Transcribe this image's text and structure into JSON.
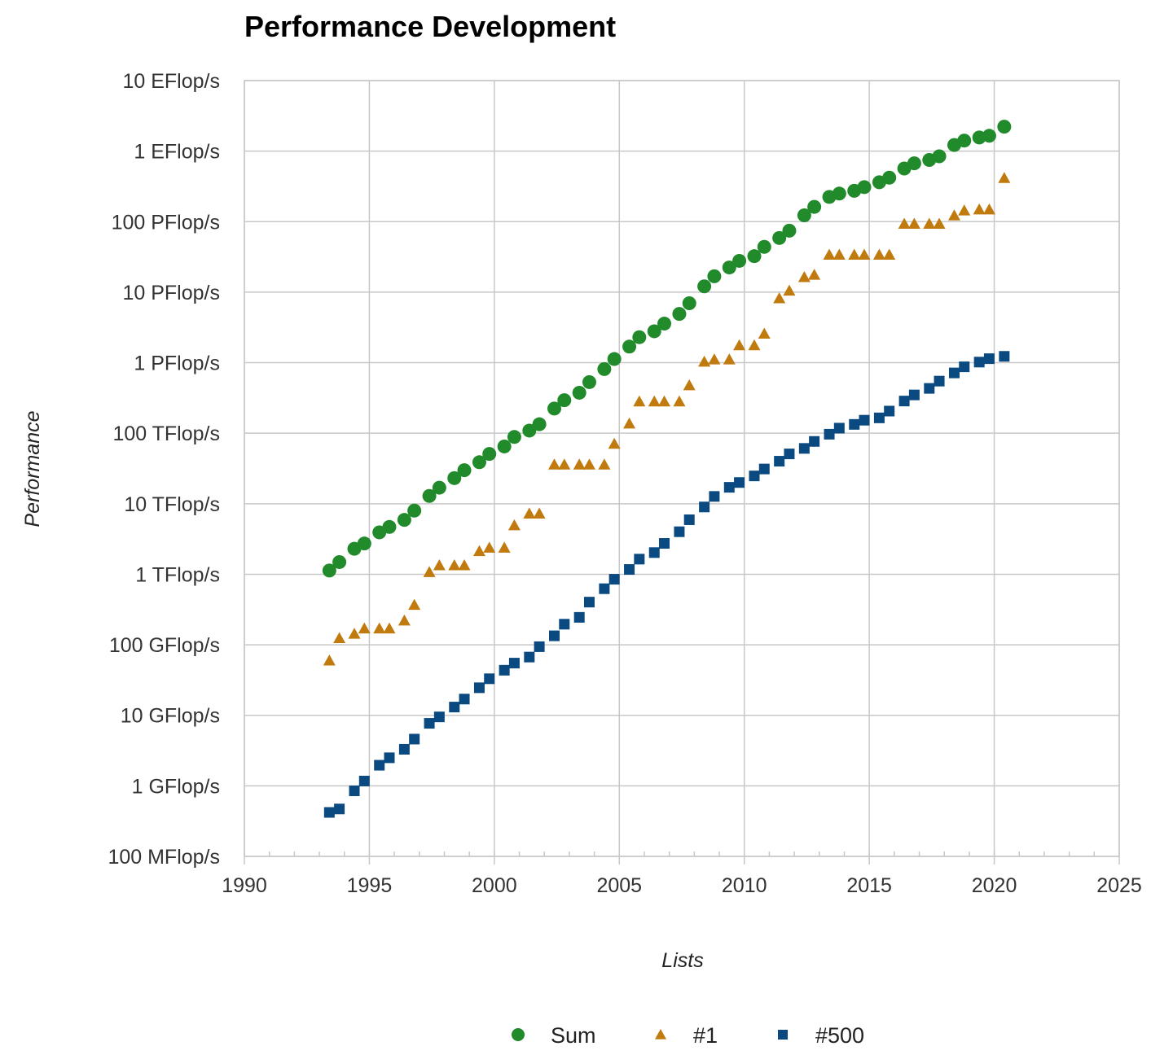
{
  "chart_data": {
    "type": "scatter",
    "title": "Performance Development",
    "xlabel": "Lists",
    "ylabel": "Performance",
    "xlim": [
      1990,
      2025
    ],
    "x_ticks": [
      "1990",
      "1995",
      "2000",
      "2005",
      "2010",
      "2015",
      "2020",
      "2025"
    ],
    "y_scale": "log",
    "y_unit": "Flop/s",
    "ylim": [
      100000000.0,
      1e+19
    ],
    "y_ticks": [
      {
        "value": 100000000.0,
        "label": "100 MFlop/s"
      },
      {
        "value": 1000000000.0,
        "label": "1 GFlop/s"
      },
      {
        "value": 10000000000.0,
        "label": "10 GFlop/s"
      },
      {
        "value": 100000000000.0,
        "label": "100 GFlop/s"
      },
      {
        "value": 1000000000000.0,
        "label": "1 TFlop/s"
      },
      {
        "value": 10000000000000.0,
        "label": "10 TFlop/s"
      },
      {
        "value": 100000000000000.0,
        "label": "100 TFlop/s"
      },
      {
        "value": 1000000000000000.0,
        "label": "1 PFlop/s"
      },
      {
        "value": 1e+16,
        "label": "10 PFlop/s"
      },
      {
        "value": 1e+17,
        "label": "100 PFlop/s"
      },
      {
        "value": 1e+18,
        "label": "1 EFlop/s"
      },
      {
        "value": 1e+19,
        "label": "10 EFlop/s"
      }
    ],
    "grid": true,
    "legend_position": "bottom",
    "x": [
      1993.4,
      1993.8,
      1994.4,
      1994.8,
      1995.4,
      1995.8,
      1996.4,
      1996.8,
      1997.4,
      1997.8,
      1998.4,
      1998.8,
      1999.4,
      1999.8,
      2000.4,
      2000.8,
      2001.4,
      2001.8,
      2002.4,
      2002.8,
      2003.4,
      2003.8,
      2004.4,
      2004.8,
      2005.4,
      2005.8,
      2006.4,
      2006.8,
      2007.4,
      2007.8,
      2008.4,
      2008.8,
      2009.4,
      2009.8,
      2010.4,
      2010.8,
      2011.4,
      2011.8,
      2012.4,
      2012.8,
      2013.4,
      2013.8,
      2014.4,
      2014.8,
      2015.4,
      2015.8,
      2016.4,
      2016.8,
      2017.4,
      2017.8,
      2018.4,
      2018.8,
      2019.4,
      2019.8,
      2020.4
    ],
    "series": [
      {
        "name": "Sum",
        "color": "#218a2a",
        "marker": "circle",
        "values": [
          1130000000000.0,
          1490000000000.0,
          2300000000000.0,
          2730000000000.0,
          3930000000000.0,
          4690000000000.0,
          5900000000000.0,
          8000000000000.0,
          12900000000000.0,
          16900000000000.0,
          23100000000000.0,
          29900000000000.0,
          38800000000000.0,
          50800000000000.0,
          64900000000000.0,
          88500000000000.0,
          109000000000000.0,
          134000000000000.0,
          224000000000000.0,
          294000000000000.0,
          375000000000000.0,
          530000000000000.0,
          813000000000000.0,
          1127000000000000.0,
          1690000000000000.0,
          2300000000000000.0,
          2790000000000000.0,
          3580000000000000.0,
          4920000000000000.0,
          6970000000000000.0,
          1.21e+16,
          1.68e+16,
          2.24e+16,
          2.78e+16,
          3.24e+16,
          4.39e+16,
          5.87e+16,
          7.45e+16,
          1.23e+17,
          1.62e+17,
          2.24e+17,
          2.5e+17,
          2.74e+17,
          3.09e+17,
          3.62e+17,
          4.2e+17,
          5.67e+17,
          6.72e+17,
          7.49e+17,
          8.45e+17,
          1.22e+18,
          1.41e+18,
          1.56e+18,
          1.65e+18,
          2.22e+18
        ]
      },
      {
        "name": "#1",
        "color": "#c07a0e",
        "marker": "triangle",
        "values": [
          59700000000.0,
          124000000000.0,
          143000000000.0,
          170000000000.0,
          170000000000.0,
          170000000000.0,
          220000000000.0,
          368000000000.0,
          1070000000000.0,
          1340000000000.0,
          1340000000000.0,
          1340000000000.0,
          2120000000000.0,
          2380000000000.0,
          2380000000000.0,
          4940000000000.0,
          7230000000000.0,
          7230000000000.0,
          35900000000000.0,
          35900000000000.0,
          35900000000000.0,
          35900000000000.0,
          35900000000000.0,
          70700000000000.0,
          137000000000000.0,
          281000000000000.0,
          281000000000000.0,
          281000000000000.0,
          281000000000000.0,
          478000000000000.0,
          1030000000000000.0,
          1110000000000000.0,
          1110000000000000.0,
          1760000000000000.0,
          1760000000000000.0,
          2570000000000000.0,
          8160000000000000.0,
          1.05e+16,
          1.63e+16,
          1.76e+16,
          3.39e+16,
          3.39e+16,
          3.39e+16,
          3.39e+16,
          3.39e+16,
          3.39e+16,
          9.3e+16,
          9.3e+16,
          9.3e+16,
          9.3e+16,
          1.22e+17,
          1.435e+17,
          1.485e+17,
          1.485e+17,
          4.15e+17
        ]
      },
      {
        "name": "#500",
        "color": "#0b4a80",
        "marker": "square",
        "values": [
          420000000.0,
          470000000.0,
          850000000.0,
          1170000000.0,
          1960000000.0,
          2500000000.0,
          3300000000.0,
          4600000000.0,
          7700000000.0,
          9500000000.0,
          13100000000.0,
          17000000000.0,
          24600000000.0,
          33000000000.0,
          43600000000.0,
          55000000000.0,
          67000000000.0,
          94000000000.0,
          134000000000.0,
          196000000000.0,
          245000000000.0,
          403000000000.0,
          624000000000.0,
          850000000000.0,
          1170000000000.0,
          1640000000000.0,
          2030000000000.0,
          2740000000000.0,
          4010000000000.0,
          5930000000000.0,
          9000000000000.0,
          12700000000000.0,
          17100000000000.0,
          20000000000000.0,
          24800000000000.0,
          31100000000000.0,
          40100000000000.0,
          50900000000000.0,
          60900000000000.0,
          76500000000000.0,
          96800000000000.0,
          118000000000000.0,
          133400000000000.0,
          153000000000000.0,
          165000000000000.0,
          206000000000000.0,
          286000000000000.0,
          349000000000000.0,
          432000000000000.0,
          548000000000000.0,
          716000000000000.0,
          874000000000000.0,
          1020000000000000.0,
          1140000000000000.0,
          1230000000000000.0
        ]
      }
    ]
  }
}
